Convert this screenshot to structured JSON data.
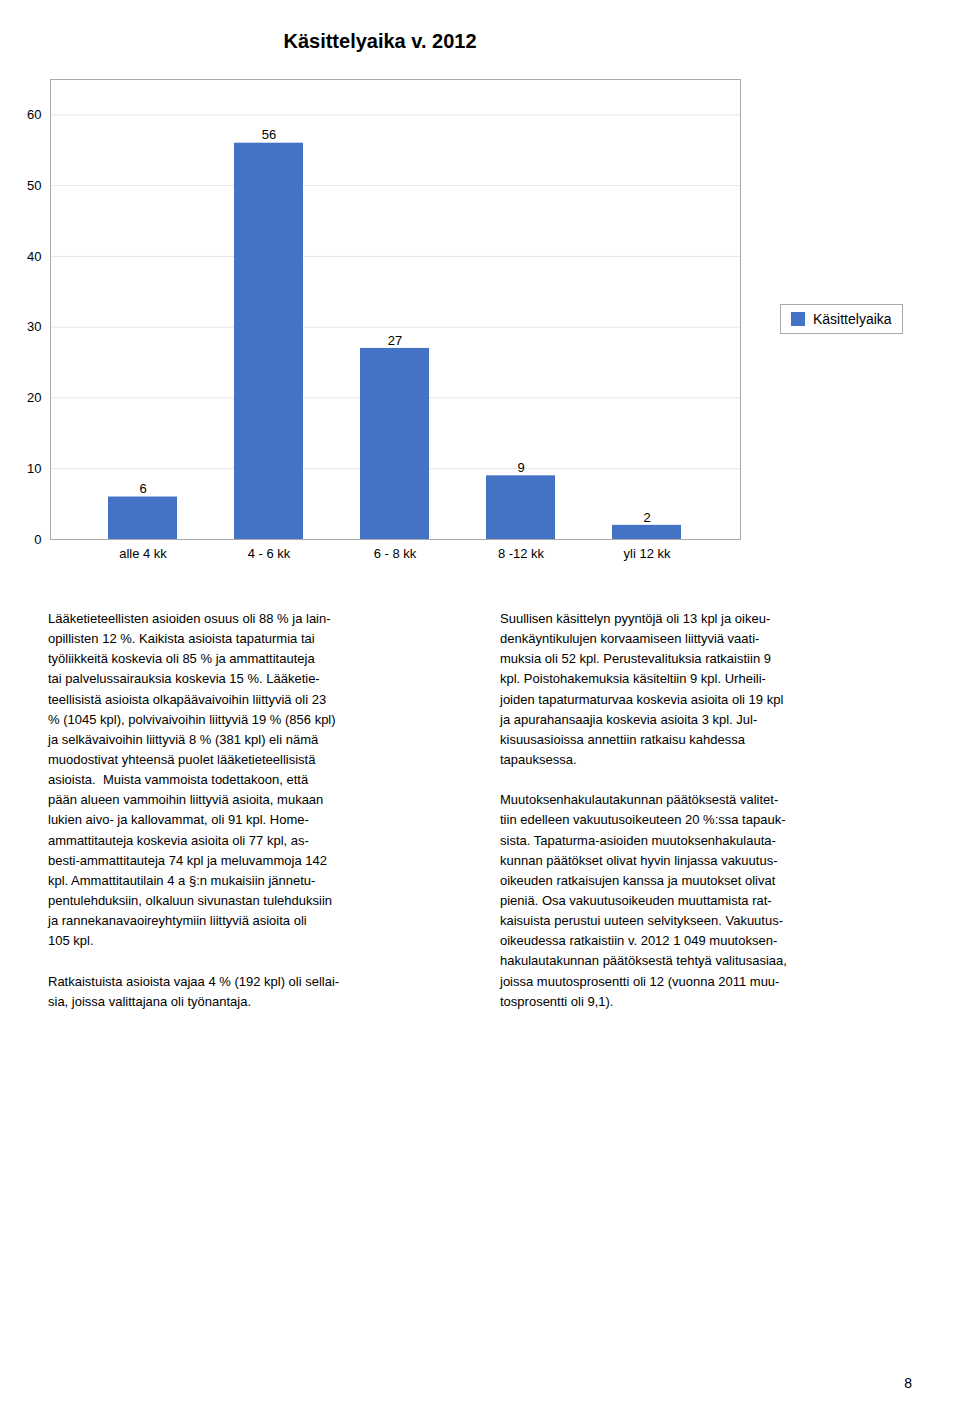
{
  "chart_data": {
    "type": "bar",
    "title": "Käsittelyaika v. 2012",
    "categories": [
      "alle 4 kk",
      "4 - 6 kk",
      "6 - 8 kk",
      "8 -12 kk",
      "yli 12 kk"
    ],
    "series": [
      {
        "name": "Käsittelyaika",
        "color": "#4472C4",
        "values": [
          6,
          56,
          27,
          9,
          2
        ]
      }
    ],
    "ylim": [
      0,
      65
    ],
    "yticks": [
      0,
      10,
      20,
      30,
      40,
      50,
      60
    ],
    "grid": true,
    "legend": "right",
    "data_labels": true,
    "annotations": [
      "Lääketieteellisten asioiden osuus oli 88 % ja lain-\nopillisten 12 %. Kaikista asioista tapaturmia tai\ntyöliikkeitä koskevia oli 85 % ja ammattitauteja\ntai palvelussairauksia koskevia 15 %. Lääketie-\nteellisistä asioista olkapäävaivoihin liittyviä oli 23\n% (1045 kpl), polvivaivoihin liittyviä 19 % (856 kpl)\nja selkävaivoihin liittyviä 8 % (381 kpl) eli nämä\nmuodostivat yhteensä puolet lääketieteellisistä\nasioista.  Muista vammoista todettakoon, että\npään alueen vammoihin liittyviä asioita, mukaan\nlukien aivo- ja kallovammat, oli 91 kpl. Home-\nammattitauteja koskevia asioita oli 77 kpl, as-\nbesti-ammattitauteja 74 kpl ja meluvammoja 142\nkpl. Ammattitautilain 4 a §:n mukaisiin jännetu-\npentulehduksiin, olkaluun sivunastan tulehduksiin\nja rannekanavaoireyhtymiin liittyviä asioita oli\n105 kpl.\n\nRatkaistuista asioista vajaa 4 % (192 kpl) oli sellai-\nsia, joissa valittajana oli työnantaja.",
      "Suullisen käsittelyn pyyntöjä oli 13 kpl ja oikeu-\ndenkäyntikulujen korvaamiseen liittyviä vaati-\nmuksia oli 52 kpl. Perustevalituksia ratkaistiin 9\nkpl. Poistohakemuksia käsiteltiin 9 kpl. Urheili-\njoiden tapaturmaturvaa koskevia asioita oli 19 kpl\nja apurahansaajia koskevia asioita 3 kpl. Jul-\nkisuusasioissa annettiin ratkaisu kahdessa\ntapauksessa.\n\nMuutoksenhakulautakunnan päätöksestä valitet-\ntiin edelleen vakuutusoikeuteen 20 %:ssa tapauk-\nsista. Tapaturma-asioiden muutoksenhakulauta-\nkunnan päätökset olivat hyvin linjassa vakuutus-\noikeuden ratkaisujen kanssa ja muutokset olivat\npieniä. Osa vakuutusoikeuden muuttamista rat-\nkaisuista perustui uuteen selvitykseen. Vakuutus-\noikeudessa ratkaistiin v. 2012 1 049 muutoksen-\nhakulautakunnan päätöksestä tehtyä valitusasiaa,\njoissa muutosprosentti oli 12 (vuonna 2011 muu-\ntosprosentti oli 9,1).",
      "8"
    ]
  }
}
